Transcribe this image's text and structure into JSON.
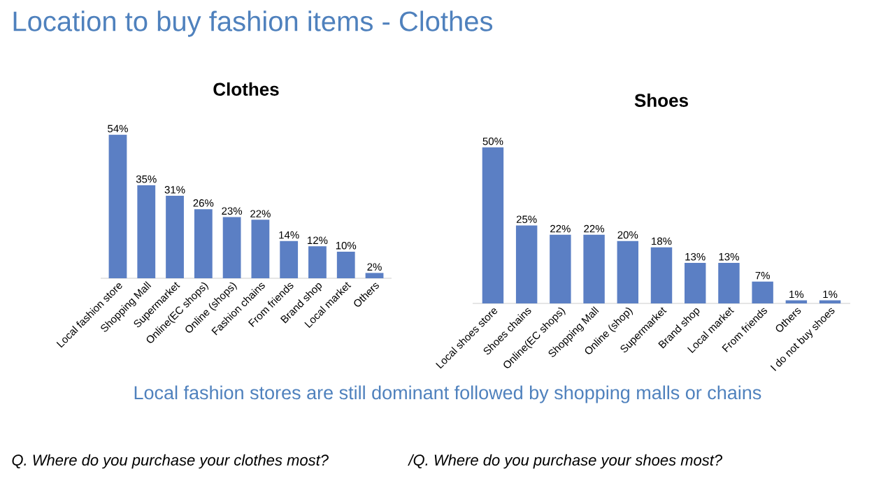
{
  "chart_data": [
    {
      "type": "bar",
      "title": "Clothes",
      "color": "#5b7fc4",
      "categories": [
        "Local fashion store",
        "Shopping Mall",
        "Supermarket",
        "Online(EC shops)",
        "Online (shops)",
        "Fashion chains",
        "From friends",
        "Brand shop",
        "Local market",
        "Others"
      ],
      "values": [
        54,
        35,
        31,
        26,
        23,
        22,
        14,
        12,
        10,
        2
      ],
      "value_labels": [
        "54%",
        "35%",
        "31%",
        "26%",
        "23%",
        "22%",
        "14%",
        "12%",
        "10%",
        "2%"
      ],
      "annotations": [
        "Location to buy fashion items - Clothes",
        "Local fashion stores are still dominant followed by shopping malls or chains",
        "Q. Where do you purchase your clothes most?"
      ]
    },
    {
      "type": "bar",
      "title": "Shoes",
      "color": "#5b7fc4",
      "categories": [
        "Local shoes store",
        "Shoes chains",
        "Online(EC shops)",
        "Shopping Mall",
        "Online (shop)",
        "Supermarket",
        "Brand shop",
        "Local market",
        "From friends",
        "Others",
        "I do not buy shoes"
      ],
      "values": [
        50,
        25,
        22,
        22,
        20,
        18,
        13,
        13,
        7,
        1,
        1
      ],
      "value_labels": [
        "50%",
        "25%",
        "22%",
        "22%",
        "20%",
        "18%",
        "13%",
        "13%",
        "7%",
        "1%",
        "1%"
      ],
      "annotations": [
        "/Q. Where do you purchase your shoes most?"
      ]
    }
  ]
}
